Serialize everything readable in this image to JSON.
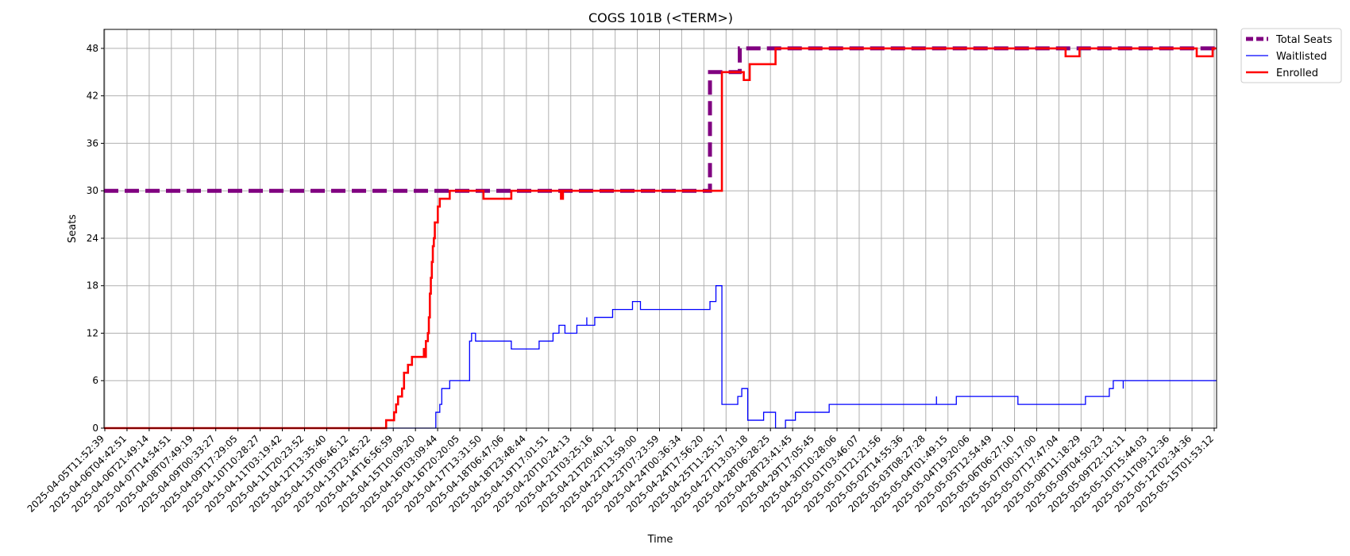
{
  "chart_data": {
    "type": "line",
    "title": "COGS 101B (<TERM>)",
    "xlabel": "Time",
    "ylabel": "Seats",
    "ylim": [
      0,
      50.4
    ],
    "yticks": [
      0,
      6,
      12,
      18,
      24,
      30,
      36,
      42,
      48
    ],
    "xlim": [
      0,
      56
    ],
    "grid": true,
    "legend_position": "outside top-right",
    "xtick_labels": [
      "2025-04-05T11:52:39",
      "2025-04-06T04:42:51",
      "2025-04-06T21:49:14",
      "2025-04-07T14:54:51",
      "2025-04-08T07:49:19",
      "2025-04-09T00:33:27",
      "2025-04-09T17:29:05",
      "2025-04-10T10:28:27",
      "2025-04-11T03:19:42",
      "2025-04-11T20:23:52",
      "2025-04-12T13:35:40",
      "2025-04-13T06:46:12",
      "2025-04-13T23:45:22",
      "2025-04-14T16:56:59",
      "2025-04-15T10:09:20",
      "2025-04-16T03:09:44",
      "2025-04-16T20:20:05",
      "2025-04-17T13:31:50",
      "2025-04-18T06:47:06",
      "2025-04-18T23:48:44",
      "2025-04-19T17:01:51",
      "2025-04-20T10:24:13",
      "2025-04-21T03:25:16",
      "2025-04-21T20:40:12",
      "2025-04-22T13:59:00",
      "2025-04-23T07:23:59",
      "2025-04-24T00:36:34",
      "2025-04-24T17:56:20",
      "2025-04-25T11:25:17",
      "2025-04-27T13:03:18",
      "2025-04-28T06:28:25",
      "2025-04-28T23:41:45",
      "2025-04-29T17:05:45",
      "2025-04-30T10:28:06",
      "2025-05-01T03:46:07",
      "2025-05-01T21:21:56",
      "2025-05-02T14:55:36",
      "2025-05-03T08:27:28",
      "2025-05-04T01:49:15",
      "2025-05-04T19:20:06",
      "2025-05-05T12:54:49",
      "2025-05-06T06:27:10",
      "2025-05-07T00:17:00",
      "2025-05-07T17:47:04",
      "2025-05-08T11:18:29",
      "2025-05-09T04:50:23",
      "2025-05-09T22:12:11",
      "2025-05-10T15:44:03",
      "2025-05-11T09:12:36",
      "2025-05-12T02:34:36",
      "2025-05-15T01:53:12"
    ],
    "series": [
      {
        "name": "Total Seats",
        "color": "#800080",
        "style": "dashed",
        "points": [
          [
            0,
            30
          ],
          [
            30.5,
            30
          ],
          [
            30.5,
            45
          ],
          [
            32,
            45
          ],
          [
            32,
            48
          ],
          [
            56,
            48
          ]
        ]
      },
      {
        "name": "Waitlisted",
        "color": "#0000ff",
        "style": "solid",
        "points": [
          [
            0,
            0
          ],
          [
            16.7,
            0
          ],
          [
            16.7,
            2
          ],
          [
            16.9,
            2
          ],
          [
            16.9,
            3
          ],
          [
            17.0,
            3
          ],
          [
            17.0,
            5
          ],
          [
            17.4,
            5
          ],
          [
            17.4,
            6
          ],
          [
            18.4,
            6
          ],
          [
            18.4,
            11
          ],
          [
            18.5,
            11
          ],
          [
            18.5,
            12
          ],
          [
            18.7,
            12
          ],
          [
            18.7,
            11
          ],
          [
            20.5,
            11
          ],
          [
            20.5,
            10
          ],
          [
            21.9,
            10
          ],
          [
            21.9,
            11
          ],
          [
            22.6,
            11
          ],
          [
            22.6,
            12
          ],
          [
            22.9,
            12
          ],
          [
            22.9,
            13
          ],
          [
            23.2,
            13
          ],
          [
            23.2,
            12
          ],
          [
            23.8,
            12
          ],
          [
            23.8,
            13
          ],
          [
            24.3,
            13
          ],
          [
            24.3,
            14
          ],
          [
            24.3,
            13
          ],
          [
            24.7,
            13
          ],
          [
            24.7,
            14
          ],
          [
            25.6,
            14
          ],
          [
            25.6,
            15
          ],
          [
            26.6,
            15
          ],
          [
            26.6,
            16
          ],
          [
            27.0,
            16
          ],
          [
            27.0,
            15
          ],
          [
            30.5,
            15
          ],
          [
            30.5,
            16
          ],
          [
            30.8,
            16
          ],
          [
            30.8,
            18
          ],
          [
            31.1,
            18
          ],
          [
            31.1,
            3
          ],
          [
            31.9,
            3
          ],
          [
            31.9,
            4
          ],
          [
            32.1,
            4
          ],
          [
            32.1,
            5
          ],
          [
            32.4,
            5
          ],
          [
            32.4,
            1
          ],
          [
            33.2,
            1
          ],
          [
            33.2,
            2
          ],
          [
            33.8,
            2
          ],
          [
            33.8,
            0
          ],
          [
            34.3,
            0
          ],
          [
            34.3,
            1
          ],
          [
            34.8,
            1
          ],
          [
            34.8,
            2
          ],
          [
            36.5,
            2
          ],
          [
            36.5,
            3
          ],
          [
            41.9,
            3
          ],
          [
            41.9,
            4
          ],
          [
            41.9,
            3
          ],
          [
            42.9,
            3
          ],
          [
            42.9,
            4
          ],
          [
            46.0,
            4
          ],
          [
            46.0,
            3
          ],
          [
            49.4,
            3
          ],
          [
            49.4,
            4
          ],
          [
            50.6,
            4
          ],
          [
            50.6,
            5
          ],
          [
            50.8,
            5
          ],
          [
            50.8,
            6
          ],
          [
            51.3,
            6
          ],
          [
            51.3,
            5
          ],
          [
            51.3,
            6
          ],
          [
            56,
            6
          ]
        ]
      },
      {
        "name": "Enrolled",
        "color": "#ff0000",
        "style": "solid",
        "points": [
          [
            0,
            0
          ],
          [
            14.2,
            0
          ],
          [
            14.2,
            1
          ],
          [
            14.6,
            1
          ],
          [
            14.6,
            2
          ],
          [
            14.7,
            2
          ],
          [
            14.7,
            3
          ],
          [
            14.8,
            3
          ],
          [
            14.8,
            4
          ],
          [
            15.0,
            4
          ],
          [
            15.0,
            5
          ],
          [
            15.1,
            5
          ],
          [
            15.1,
            7
          ],
          [
            15.3,
            7
          ],
          [
            15.3,
            8
          ],
          [
            15.5,
            8
          ],
          [
            15.5,
            9
          ],
          [
            16.1,
            9
          ],
          [
            16.1,
            10
          ],
          [
            16.15,
            10
          ],
          [
            16.15,
            9
          ],
          [
            16.2,
            9
          ],
          [
            16.2,
            11
          ],
          [
            16.3,
            11
          ],
          [
            16.3,
            12
          ],
          [
            16.35,
            12
          ],
          [
            16.35,
            14
          ],
          [
            16.4,
            14
          ],
          [
            16.4,
            17
          ],
          [
            16.45,
            17
          ],
          [
            16.45,
            19
          ],
          [
            16.5,
            19
          ],
          [
            16.5,
            21
          ],
          [
            16.55,
            21
          ],
          [
            16.55,
            23
          ],
          [
            16.6,
            23
          ],
          [
            16.6,
            24
          ],
          [
            16.65,
            24
          ],
          [
            16.65,
            26
          ],
          [
            16.8,
            26
          ],
          [
            16.8,
            28
          ],
          [
            16.9,
            28
          ],
          [
            16.9,
            29
          ],
          [
            17.4,
            29
          ],
          [
            17.4,
            30
          ],
          [
            19.1,
            30
          ],
          [
            19.1,
            29
          ],
          [
            20.5,
            29
          ],
          [
            20.5,
            30
          ],
          [
            23.0,
            30
          ],
          [
            23.0,
            29
          ],
          [
            23.1,
            29
          ],
          [
            23.1,
            30
          ],
          [
            31.1,
            30
          ],
          [
            31.1,
            45
          ],
          [
            32.2,
            45
          ],
          [
            32.2,
            44
          ],
          [
            32.5,
            44
          ],
          [
            32.5,
            46
          ],
          [
            33.8,
            46
          ],
          [
            33.8,
            48
          ],
          [
            48.4,
            48
          ],
          [
            48.4,
            47
          ],
          [
            49.1,
            47
          ],
          [
            49.1,
            48
          ],
          [
            55.0,
            48
          ],
          [
            55.0,
            47
          ],
          [
            55.8,
            47
          ],
          [
            55.8,
            48
          ],
          [
            56,
            48
          ]
        ]
      }
    ]
  }
}
